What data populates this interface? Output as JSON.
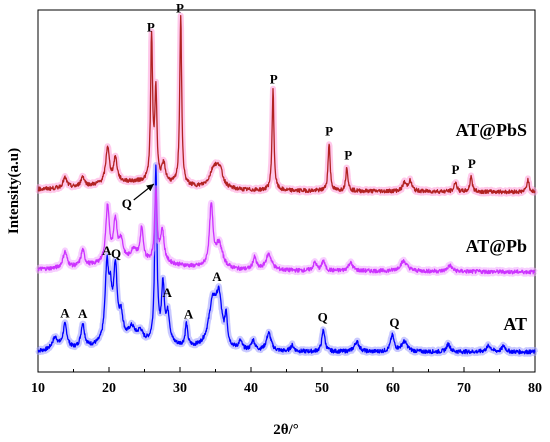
{
  "chart_data": {
    "type": "line",
    "xlabel": "2θ/°",
    "ylabel": "Intensity(a.u)",
    "xlim": [
      10,
      80
    ],
    "xticks": [
      10,
      20,
      30,
      40,
      50,
      60,
      70,
      80
    ],
    "grid": false,
    "series": [
      {
        "name": "AT",
        "color": "#0000ff",
        "glow": "#9a9aff",
        "baseline": 0.0,
        "peaks": [
          {
            "x": 12.4,
            "h": 0.06,
            "w": 0.5
          },
          {
            "x": 13.8,
            "h": 0.12,
            "w": 0.35
          },
          {
            "x": 16.3,
            "h": 0.12,
            "w": 0.3
          },
          {
            "x": 19.7,
            "h": 0.36,
            "w": 0.3
          },
          {
            "x": 20.2,
            "h": 0.2,
            "w": 0.3
          },
          {
            "x": 20.9,
            "h": 0.35,
            "w": 0.3
          },
          {
            "x": 21.7,
            "h": 0.12,
            "w": 0.35
          },
          {
            "x": 23.2,
            "h": 0.07,
            "w": 0.6
          },
          {
            "x": 24.4,
            "h": 0.05,
            "w": 0.4
          },
          {
            "x": 26.6,
            "h": 0.87,
            "w": 0.18
          },
          {
            "x": 27.6,
            "h": 0.28,
            "w": 0.25
          },
          {
            "x": 28.3,
            "h": 0.14,
            "w": 0.3
          },
          {
            "x": 30.9,
            "h": 0.11,
            "w": 0.2
          },
          {
            "x": 34.6,
            "h": 0.22,
            "w": 0.7
          },
          {
            "x": 35.5,
            "h": 0.22,
            "w": 0.5
          },
          {
            "x": 36.5,
            "h": 0.14,
            "w": 0.2
          },
          {
            "x": 38.5,
            "h": 0.04,
            "w": 0.3
          },
          {
            "x": 40.3,
            "h": 0.05,
            "w": 0.3
          },
          {
            "x": 42.5,
            "h": 0.09,
            "w": 0.4
          },
          {
            "x": 45.8,
            "h": 0.03,
            "w": 0.3
          },
          {
            "x": 50.2,
            "h": 0.11,
            "w": 0.25
          },
          {
            "x": 54.9,
            "h": 0.05,
            "w": 0.4
          },
          {
            "x": 59.9,
            "h": 0.08,
            "w": 0.3
          },
          {
            "x": 61.6,
            "h": 0.05,
            "w": 0.5
          },
          {
            "x": 67.8,
            "h": 0.04,
            "w": 0.3
          },
          {
            "x": 73.5,
            "h": 0.03,
            "w": 0.4
          },
          {
            "x": 75.6,
            "h": 0.03,
            "w": 0.3
          }
        ]
      },
      {
        "name": "AT@Pb",
        "color": "#cc33ff",
        "glow": "#f0a6ff",
        "baseline": 0.52,
        "peaks": [
          {
            "x": 13.8,
            "h": 0.08,
            "w": 0.35
          },
          {
            "x": 16.3,
            "h": 0.08,
            "w": 0.3
          },
          {
            "x": 19.8,
            "h": 0.28,
            "w": 0.3
          },
          {
            "x": 20.9,
            "h": 0.2,
            "w": 0.3
          },
          {
            "x": 21.7,
            "h": 0.1,
            "w": 0.35
          },
          {
            "x": 23.5,
            "h": 0.06,
            "w": 0.5
          },
          {
            "x": 24.6,
            "h": 0.16,
            "w": 0.25
          },
          {
            "x": 26.6,
            "h": 0.36,
            "w": 0.2
          },
          {
            "x": 27.5,
            "h": 0.16,
            "w": 0.3
          },
          {
            "x": 34.4,
            "h": 0.3,
            "w": 0.3
          },
          {
            "x": 35.5,
            "h": 0.12,
            "w": 0.6
          },
          {
            "x": 40.5,
            "h": 0.06,
            "w": 0.3
          },
          {
            "x": 42.5,
            "h": 0.08,
            "w": 0.5
          },
          {
            "x": 49.0,
            "h": 0.04,
            "w": 0.3
          },
          {
            "x": 50.2,
            "h": 0.05,
            "w": 0.25
          },
          {
            "x": 54.0,
            "h": 0.04,
            "w": 0.4
          },
          {
            "x": 61.5,
            "h": 0.05,
            "w": 0.6
          },
          {
            "x": 68.0,
            "h": 0.03,
            "w": 0.4
          }
        ]
      },
      {
        "name": "AT@PbS",
        "color": "#b22222",
        "glow": "#ff9ad8",
        "baseline": 0.98,
        "peaks": [
          {
            "x": 13.8,
            "h": 0.05,
            "w": 0.35
          },
          {
            "x": 16.3,
            "h": 0.05,
            "w": 0.3
          },
          {
            "x": 19.8,
            "h": 0.18,
            "w": 0.3
          },
          {
            "x": 20.9,
            "h": 0.12,
            "w": 0.3
          },
          {
            "x": 26.0,
            "h": 0.72,
            "w": 0.16
          },
          {
            "x": 26.6,
            "h": 0.45,
            "w": 0.18
          },
          {
            "x": 27.7,
            "h": 0.09,
            "w": 0.3
          },
          {
            "x": 30.1,
            "h": 0.85,
            "w": 0.16
          },
          {
            "x": 34.8,
            "h": 0.1,
            "w": 0.7
          },
          {
            "x": 35.6,
            "h": 0.08,
            "w": 0.5
          },
          {
            "x": 43.1,
            "h": 0.5,
            "w": 0.16
          },
          {
            "x": 51.0,
            "h": 0.24,
            "w": 0.17
          },
          {
            "x": 53.5,
            "h": 0.12,
            "w": 0.18
          },
          {
            "x": 61.6,
            "h": 0.04,
            "w": 0.3
          },
          {
            "x": 62.4,
            "h": 0.05,
            "w": 0.3
          },
          {
            "x": 68.8,
            "h": 0.05,
            "w": 0.2
          },
          {
            "x": 71.0,
            "h": 0.08,
            "w": 0.18
          },
          {
            "x": 79.0,
            "h": 0.06,
            "w": 0.2
          }
        ]
      }
    ],
    "annotations": [
      {
        "text": "A",
        "x": 13.8,
        "series": 0
      },
      {
        "text": "A",
        "x": 16.3,
        "series": 0
      },
      {
        "text": "A",
        "x": 19.7,
        "series": 0
      },
      {
        "text": "Q",
        "x": 21.0,
        "series": 0
      },
      {
        "text": "A",
        "x": 28.2,
        "series": 0
      },
      {
        "text": "A",
        "x": 31.2,
        "series": 0
      },
      {
        "text": "A",
        "x": 35.2,
        "series": 0
      },
      {
        "text": "Q",
        "x": 50.1,
        "series": 0
      },
      {
        "text": "Q",
        "x": 60.2,
        "series": 0
      },
      {
        "text": "P",
        "x": 25.9,
        "series": 2
      },
      {
        "text": "P",
        "x": 30.0,
        "series": 2
      },
      {
        "text": "P",
        "x": 43.2,
        "series": 2
      },
      {
        "text": "P",
        "x": 51.0,
        "series": 2
      },
      {
        "text": "P",
        "x": 53.7,
        "series": 2
      },
      {
        "text": "P",
        "x": 68.8,
        "series": 2
      },
      {
        "text": "P",
        "x": 71.1,
        "series": 2
      },
      {
        "text": "Q",
        "x": 22.5,
        "series": 2,
        "arrow_to_x": 26.6
      }
    ]
  }
}
